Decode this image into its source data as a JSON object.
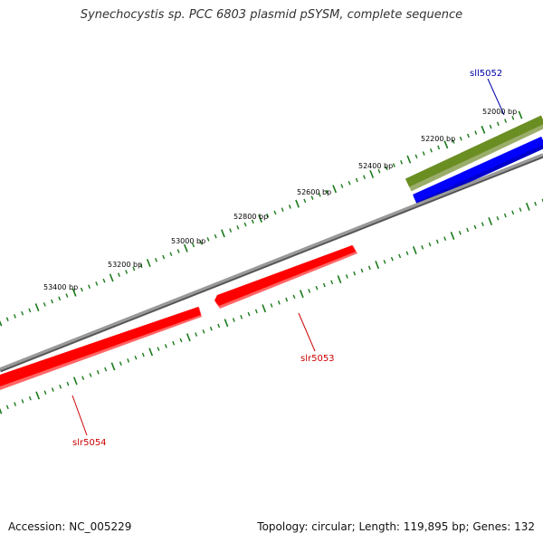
{
  "title": "Synechocystis sp. PCC 6803 plasmid pSYSM, complete sequence",
  "footer": {
    "accession": "Accession: NC_005229",
    "summary": "Topology: circular; Length: 119,895 bp; Genes: 132"
  },
  "colors": {
    "backbone": "#808080",
    "tick": "#1a7a1a",
    "gene_reverse": "#ff0000",
    "gene_forward": "#0000ff",
    "feature_green": "#6b8e23",
    "label_blue": "#0000aa",
    "label_red": "#cc0000"
  },
  "scale_labels": [
    "52000 bp",
    "52200 bp",
    "52400 bp",
    "52600 bp",
    "52800 bp",
    "53000 bp",
    "53200 bp",
    "53400 bp"
  ],
  "genes": [
    {
      "name": "sll5052",
      "strand": "forward"
    },
    {
      "name": "slr5053",
      "strand": "reverse"
    },
    {
      "name": "slr5054",
      "strand": "reverse"
    }
  ]
}
